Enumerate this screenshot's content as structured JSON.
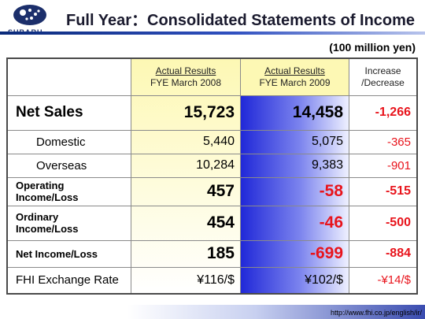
{
  "header": {
    "logo_text": "SUBARU",
    "title": "Full Year：Consolidated Statements of Income"
  },
  "unit": "(100 million yen)",
  "table": {
    "columns": [
      {
        "line1": "Actual Results",
        "line2": "FYE March 2008"
      },
      {
        "line1": "Actual Results",
        "line2": "FYE March 2009"
      },
      {
        "line1": "Increase",
        "line2": "/Decrease"
      }
    ],
    "rows": [
      {
        "label": "Net Sales",
        "fy2008": "15,723",
        "fy2009": "14,458",
        "change": "-1,266"
      },
      {
        "label": "Domestic",
        "fy2008": "5,440",
        "fy2009": "5,075",
        "change": "-365"
      },
      {
        "label": "Overseas",
        "fy2008": "10,284",
        "fy2009": "9,383",
        "change": "-901"
      },
      {
        "label_line1": "Operating",
        "label_line2": "Income/Loss",
        "fy2008": "457",
        "fy2009": "-58",
        "change": "-515"
      },
      {
        "label_line1": "Ordinary",
        "label_line2": "Income/Loss",
        "fy2008": "454",
        "fy2009": "-46",
        "change": "-500"
      },
      {
        "label": "Net Income/Loss",
        "fy2008": "185",
        "fy2009": "-699",
        "change": "-884"
      },
      {
        "label": "FHI Exchange Rate",
        "fy2008": "¥116/$",
        "fy2009": "¥102/$",
        "change": "-¥14/$"
      }
    ]
  },
  "footer": {
    "url": "http://www.fhi.co.jp/english/ir/"
  },
  "colors": {
    "accent_blue": "#2028d8",
    "negative_red": "#e8141c",
    "header_yellow": "#fdf8b4"
  }
}
